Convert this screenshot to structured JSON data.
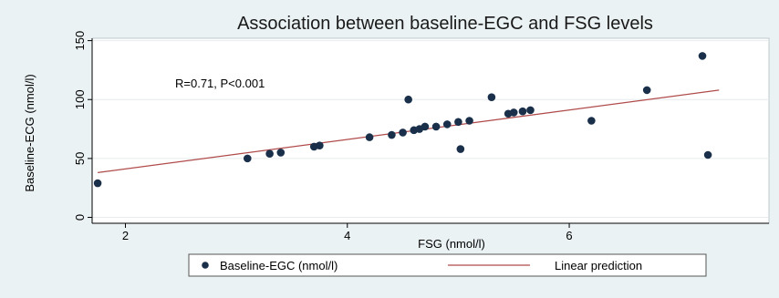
{
  "chart_data": {
    "type": "scatter",
    "title": "Association between baseline-EGC and FSG levels",
    "xlabel": "FSG (nmol/l)",
    "ylabel": "Baseline-ECG (nmol/l)",
    "xlim": [
      1.7,
      7.8
    ],
    "ylim": [
      -5,
      152
    ],
    "xticks": [
      2,
      4,
      6
    ],
    "yticks": [
      0,
      50,
      100,
      150
    ],
    "x_tick_labels": [
      "2",
      "4",
      "6"
    ],
    "y_tick_labels": [
      "0",
      "50",
      "100",
      "150"
    ],
    "grid": true,
    "annotation": "R=0.71, P<0.001",
    "legend_position": "bottom",
    "series": [
      {
        "name": "Baseline-EGC (nmol/l)",
        "kind": "points",
        "color": "#1a2f4a",
        "points": [
          {
            "x": 1.75,
            "y": 29
          },
          {
            "x": 3.1,
            "y": 50
          },
          {
            "x": 3.3,
            "y": 54
          },
          {
            "x": 3.4,
            "y": 55
          },
          {
            "x": 3.7,
            "y": 60
          },
          {
            "x": 3.75,
            "y": 61
          },
          {
            "x": 4.2,
            "y": 68
          },
          {
            "x": 4.4,
            "y": 70
          },
          {
            "x": 4.5,
            "y": 72
          },
          {
            "x": 4.55,
            "y": 100
          },
          {
            "x": 4.6,
            "y": 74
          },
          {
            "x": 4.65,
            "y": 75
          },
          {
            "x": 4.7,
            "y": 77
          },
          {
            "x": 4.8,
            "y": 77
          },
          {
            "x": 4.9,
            "y": 79
          },
          {
            "x": 5.0,
            "y": 81
          },
          {
            "x": 5.02,
            "y": 58
          },
          {
            "x": 5.1,
            "y": 82
          },
          {
            "x": 5.3,
            "y": 102
          },
          {
            "x": 5.45,
            "y": 88
          },
          {
            "x": 5.5,
            "y": 89
          },
          {
            "x": 5.58,
            "y": 90
          },
          {
            "x": 5.65,
            "y": 91
          },
          {
            "x": 6.2,
            "y": 82
          },
          {
            "x": 6.7,
            "y": 108
          },
          {
            "x": 7.2,
            "y": 137
          },
          {
            "x": 7.25,
            "y": 53
          }
        ]
      },
      {
        "name": "Linear prediction",
        "kind": "line",
        "color": "#b04a4a",
        "x": [
          1.75,
          7.35
        ],
        "y": [
          38,
          108
        ]
      }
    ]
  }
}
